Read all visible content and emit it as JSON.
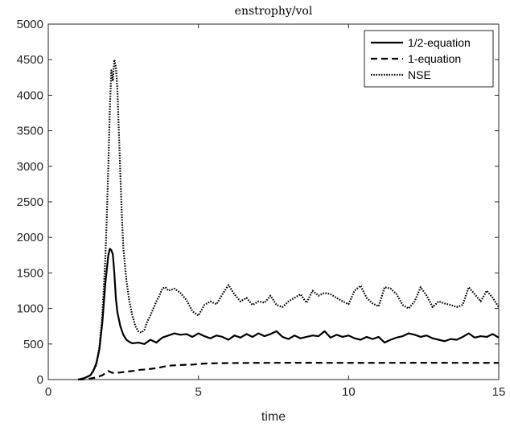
{
  "chart_data": {
    "type": "line",
    "title": "enstrophy/vol",
    "xlabel": "time",
    "ylabel": "",
    "xlim": [
      0,
      15
    ],
    "ylim": [
      0,
      5000
    ],
    "xticks": [
      0,
      5,
      10,
      15
    ],
    "yticks": [
      0,
      500,
      1000,
      1500,
      2000,
      2500,
      3000,
      3500,
      4000,
      4500,
      5000
    ],
    "xtick_labels": [
      "0",
      "5",
      "10",
      "15"
    ],
    "ytick_labels": [
      "0",
      "500",
      "1000",
      "1500",
      "2000",
      "2500",
      "3000",
      "3500",
      "4000",
      "4500",
      "5000"
    ],
    "legend_position": "top-right",
    "grid": false,
    "series": [
      {
        "name": "1/2-equation",
        "color": "#000000",
        "style": "solid",
        "x": [
          1.0,
          1.2,
          1.4,
          1.5,
          1.6,
          1.7,
          1.8,
          1.9,
          2.0,
          2.05,
          2.1,
          2.15,
          2.2,
          2.25,
          2.3,
          2.4,
          2.5,
          2.6,
          2.7,
          2.8,
          3.0,
          3.2,
          3.4,
          3.6,
          3.8,
          4.0,
          4.2,
          4.4,
          4.6,
          4.8,
          5.0,
          5.2,
          5.4,
          5.6,
          5.8,
          6.0,
          6.2,
          6.4,
          6.6,
          6.8,
          7.0,
          7.2,
          7.4,
          7.6,
          7.8,
          8.0,
          8.2,
          8.4,
          8.6,
          8.8,
          9.0,
          9.2,
          9.4,
          9.6,
          9.8,
          10.0,
          10.2,
          10.4,
          10.6,
          10.8,
          11.0,
          11.2,
          11.4,
          11.6,
          11.8,
          12.0,
          12.2,
          12.4,
          12.6,
          12.8,
          13.0,
          13.2,
          13.4,
          13.6,
          13.8,
          14.0,
          14.2,
          14.4,
          14.6,
          14.8,
          15.0
        ],
        "values": [
          0,
          20,
          60,
          120,
          230,
          420,
          800,
          1350,
          1750,
          1840,
          1820,
          1760,
          1500,
          1150,
          950,
          750,
          630,
          560,
          530,
          510,
          520,
          500,
          560,
          520,
          590,
          620,
          650,
          630,
          640,
          600,
          650,
          610,
          580,
          620,
          600,
          560,
          620,
          590,
          640,
          600,
          650,
          610,
          640,
          680,
          600,
          570,
          620,
          580,
          600,
          620,
          610,
          680,
          590,
          630,
          600,
          620,
          580,
          560,
          600,
          570,
          600,
          520,
          560,
          590,
          610,
          650,
          630,
          600,
          620,
          580,
          560,
          540,
          570,
          560,
          600,
          650,
          590,
          610,
          600,
          640,
          590
        ]
      },
      {
        "name": "1-equation",
        "color": "#000000",
        "style": "dashed",
        "x": [
          1.0,
          1.2,
          1.4,
          1.6,
          1.8,
          1.9,
          2.0,
          2.1,
          2.2,
          2.4,
          2.6,
          2.8,
          3.0,
          3.3,
          3.6,
          4.0,
          4.4,
          4.8,
          5.2,
          5.6,
          6.0,
          7.0,
          8.0,
          9.0,
          10.0,
          11.0,
          12.0,
          13.0,
          14.0,
          15.0
        ],
        "values": [
          0,
          5,
          15,
          30,
          60,
          90,
          120,
          100,
          90,
          100,
          110,
          120,
          135,
          145,
          160,
          195,
          205,
          210,
          225,
          230,
          232,
          235,
          236,
          236,
          235,
          235,
          236,
          236,
          235,
          235
        ]
      },
      {
        "name": "NSE",
        "color": "#000000",
        "style": "dotted",
        "x": [
          1.0,
          1.2,
          1.4,
          1.6,
          1.7,
          1.8,
          1.9,
          1.95,
          2.0,
          2.05,
          2.1,
          2.15,
          2.2,
          2.25,
          2.3,
          2.35,
          2.4,
          2.45,
          2.5,
          2.6,
          2.7,
          2.8,
          2.9,
          3.0,
          3.1,
          3.2,
          3.3,
          3.4,
          3.5,
          3.6,
          3.7,
          3.8,
          3.9,
          4.0,
          4.2,
          4.4,
          4.6,
          4.8,
          5.0,
          5.2,
          5.4,
          5.6,
          5.8,
          6.0,
          6.2,
          6.4,
          6.6,
          6.8,
          7.0,
          7.2,
          7.4,
          7.6,
          7.8,
          8.0,
          8.2,
          8.4,
          8.6,
          8.8,
          9.0,
          9.2,
          9.4,
          9.6,
          9.8,
          10.0,
          10.2,
          10.4,
          10.6,
          10.8,
          11.0,
          11.2,
          11.4,
          11.6,
          11.8,
          12.0,
          12.2,
          12.4,
          12.6,
          12.8,
          13.0,
          13.2,
          13.4,
          13.6,
          13.8,
          14.0,
          14.2,
          14.4,
          14.6,
          14.8,
          15.0
        ],
        "values": [
          0,
          20,
          60,
          200,
          450,
          900,
          1700,
          2300,
          3000,
          3800,
          4350,
          4200,
          4500,
          4400,
          4100,
          3500,
          2900,
          2300,
          1850,
          1400,
          1100,
          900,
          750,
          680,
          660,
          700,
          820,
          900,
          1000,
          1100,
          1180,
          1280,
          1300,
          1250,
          1280,
          1220,
          1120,
          960,
          900,
          1050,
          1100,
          1060,
          1200,
          1330,
          1200,
          1100,
          1150,
          1050,
          1100,
          1080,
          1180,
          1050,
          1020,
          1100,
          1150,
          1200,
          1080,
          1250,
          1180,
          1220,
          1200,
          1150,
          1100,
          1060,
          1250,
          1320,
          1150,
          1070,
          1030,
          1300,
          1280,
          1200,
          1050,
          1000,
          1100,
          1300,
          1180,
          1020,
          1100,
          1070,
          1050,
          1020,
          1050,
          1300,
          1200,
          1100,
          1250,
          1150,
          1020
        ]
      }
    ]
  }
}
